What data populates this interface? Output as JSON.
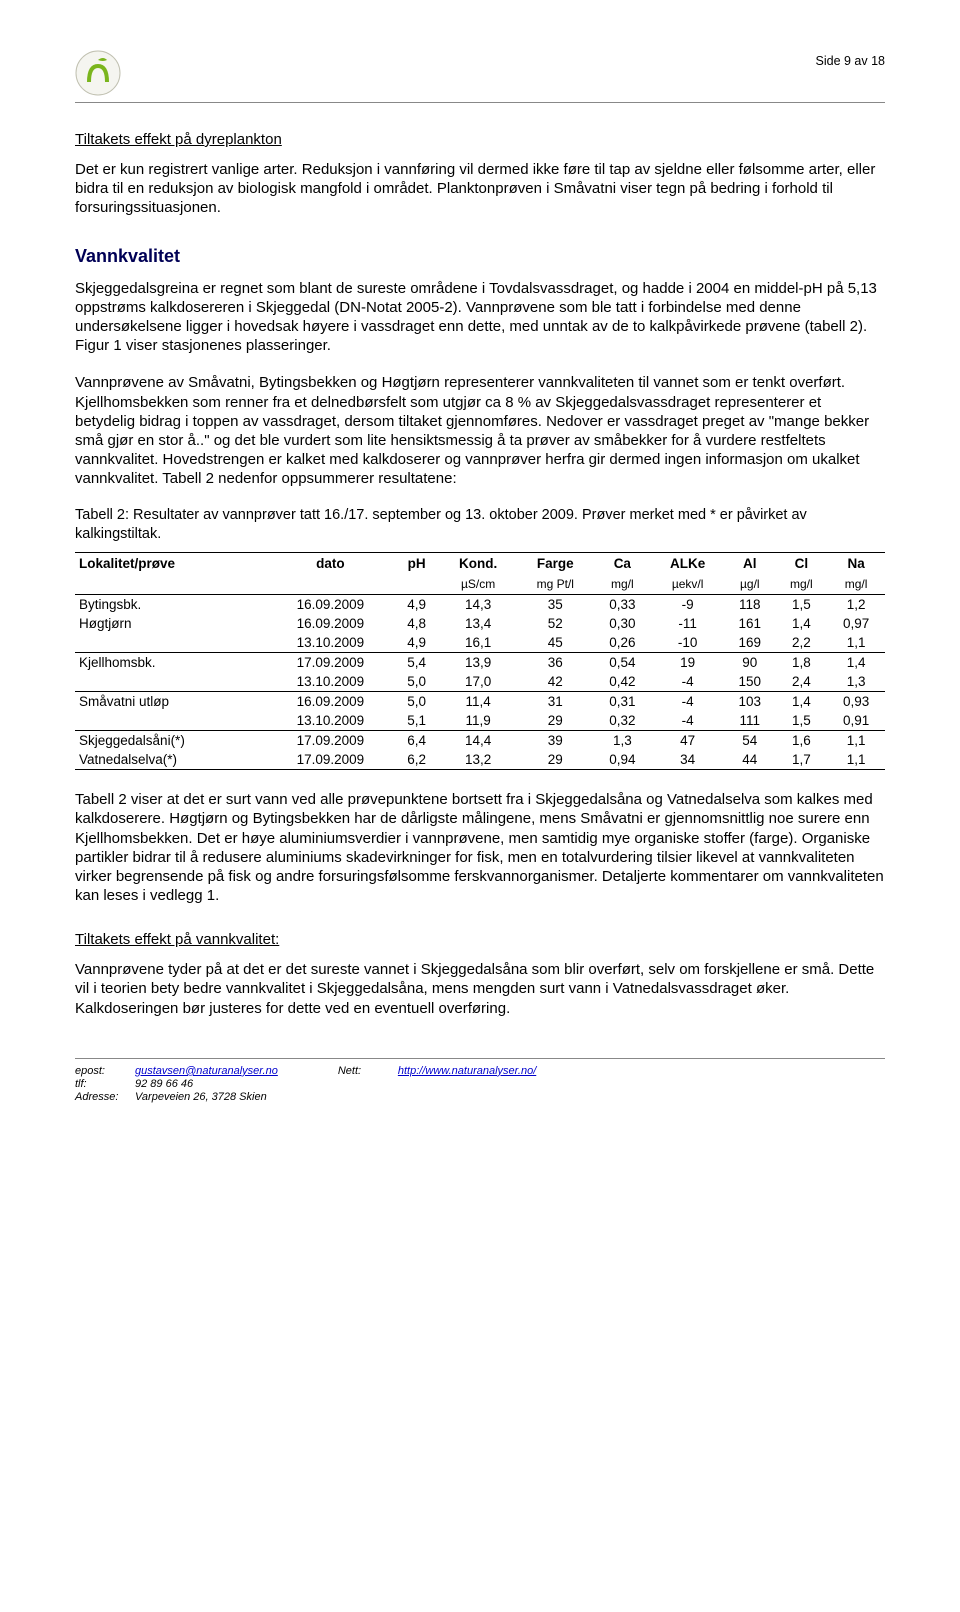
{
  "header": {
    "page_label": "Side 9 av 18"
  },
  "section1": {
    "title": "Tiltakets effekt på dyreplankton",
    "para": "Det er kun registrert vanlige arter. Reduksjon i vannføring vil dermed ikke føre til tap av sjeldne eller følsomme arter, eller bidra til en reduksjon av biologisk mangfold i området. Planktonprøven i Småvatni viser tegn på bedring i forhold til forsuringssituasjonen."
  },
  "section2": {
    "title": "Vannkvalitet",
    "para1": "Skjeggedalsgreina er regnet som blant de sureste områdene i Tovdalsvassdraget, og hadde i 2004 en middel-pH på 5,13 oppstrøms kalkdosereren i Skjeggedal (DN-Notat 2005-2). Vannprøvene som ble tatt i forbindelse med denne undersøkelsene ligger i hovedsak høyere i vassdraget enn dette, med unntak av de to kalkpåvirkede prøvene (tabell 2). Figur 1 viser stasjonenes plasseringer.",
    "para2": "Vannprøvene av Småvatni, Bytingsbekken og Høgtjørn representerer vannkvaliteten til vannet som er tenkt overført. Kjellhomsbekken som renner fra et delnedbørsfelt som utgjør ca 8 % av Skjeggedalsvassdraget representerer et betydelig bidrag i toppen av vassdraget, dersom tiltaket gjennomføres. Nedover er vassdraget preget av \"mange bekker små gjør en stor å..\" og det ble vurdert som lite hensiktsmessig å ta prøver av småbekker for å vurdere restfeltets vannkvalitet. Hovedstrengen er kalket med kalkdoserer og vannprøver herfra gir dermed ingen informasjon om ukalket vannkvalitet. Tabell 2 nedenfor oppsummerer resultatene:"
  },
  "table": {
    "caption": "Tabell 2: Resultater av vannprøver tatt 16./17. september og 13. oktober 2009. Prøver merket med * er påvirket av kalkingstiltak.",
    "columns": [
      "Lokalitet/prøve",
      "dato",
      "pH",
      "Kond.",
      "Farge",
      "Ca",
      "ALKe",
      "Al",
      "Cl",
      "Na"
    ],
    "units": [
      "",
      "",
      "",
      "µS/cm",
      "mg Pt/l",
      "mg/l",
      "µekv/l",
      "µg/l",
      "mg/l",
      "mg/l"
    ],
    "rows": [
      {
        "cells": [
          "Bytingsbk.",
          "16.09.2009",
          "4,9",
          "14,3",
          "35",
          "0,33",
          "-9",
          "118",
          "1,5",
          "1,2"
        ],
        "top": true
      },
      {
        "cells": [
          "Høgtjørn",
          "16.09.2009",
          "4,8",
          "13,4",
          "52",
          "0,30",
          "-11",
          "161",
          "1,4",
          "0,97"
        ],
        "top": false
      },
      {
        "cells": [
          "",
          "13.10.2009",
          "4,9",
          "16,1",
          "45",
          "0,26",
          "-10",
          "169",
          "2,2",
          "1,1"
        ],
        "bot": true
      },
      {
        "cells": [
          "Kjellhomsbk.",
          "17.09.2009",
          "5,4",
          "13,9",
          "36",
          "0,54",
          "19",
          "90",
          "1,8",
          "1,4"
        ],
        "top": false
      },
      {
        "cells": [
          "",
          "13.10.2009",
          "5,0",
          "17,0",
          "42",
          "0,42",
          "-4",
          "150",
          "2,4",
          "1,3"
        ],
        "bot": true
      },
      {
        "cells": [
          "Småvatni utløp",
          "16.09.2009",
          "5,0",
          "11,4",
          "31",
          "0,31",
          "-4",
          "103",
          "1,4",
          "0,93"
        ],
        "top": false
      },
      {
        "cells": [
          "",
          "13.10.2009",
          "5,1",
          "11,9",
          "29",
          "0,32",
          "-4",
          "111",
          "1,5",
          "0,91"
        ],
        "bot": true
      },
      {
        "cells": [
          "Skjeggedalsåni(*)",
          "17.09.2009",
          "6,4",
          "14,4",
          "39",
          "1,3",
          "47",
          "54",
          "1,6",
          "1,1"
        ],
        "top": false
      },
      {
        "cells": [
          "Vatnedalselva(*)",
          "17.09.2009",
          "6,2",
          "13,2",
          "29",
          "0,94",
          "34",
          "44",
          "1,7",
          "1,1"
        ],
        "bot": true
      }
    ]
  },
  "section3": {
    "para": "Tabell 2 viser at det er surt vann ved alle prøvepunktene bortsett fra i Skjeggedalsåna og Vatnedalselva som kalkes med kalkdoserere. Høgtjørn og Bytingsbekken har de dårligste målingene, mens Småvatni er gjennomsnittlig noe surere enn Kjellhomsbekken. Det er høye aluminiumsverdier i vannprøvene, men samtidig mye organiske stoffer (farge). Organiske partikler bidrar til å redusere aluminiums skadevirkninger for fisk, men en totalvurdering tilsier likevel at vannkvaliteten virker begrensende på fisk og andre forsuringsfølsomme ferskvannorganismer. Detaljerte kommentarer om vannkvaliteten kan leses i vedlegg 1."
  },
  "section4": {
    "title": "Tiltakets effekt på vannkvalitet:",
    "para": "Vannprøvene tyder på at det er det sureste vannet i Skjeggedalsåna som blir overført, selv om forskjellene er små. Dette vil i teorien bety bedre vannkvalitet i Skjeggedalsåna, mens mengden surt vann i Vatnedalsvassdraget øker. Kalkdoseringen bør justeres for dette ved en eventuell overføring."
  },
  "footer": {
    "epost_label": "epost:",
    "epost": "gustavsen@naturanalyser.no",
    "tlf_label": "tlf:",
    "tlf": "92 89 66 46",
    "adresse_label": "Adresse:",
    "adresse": "Varpeveien 26, 3728 Skien",
    "nett_label": "Nett:",
    "nett": "http://www.naturanalyser.no/"
  }
}
